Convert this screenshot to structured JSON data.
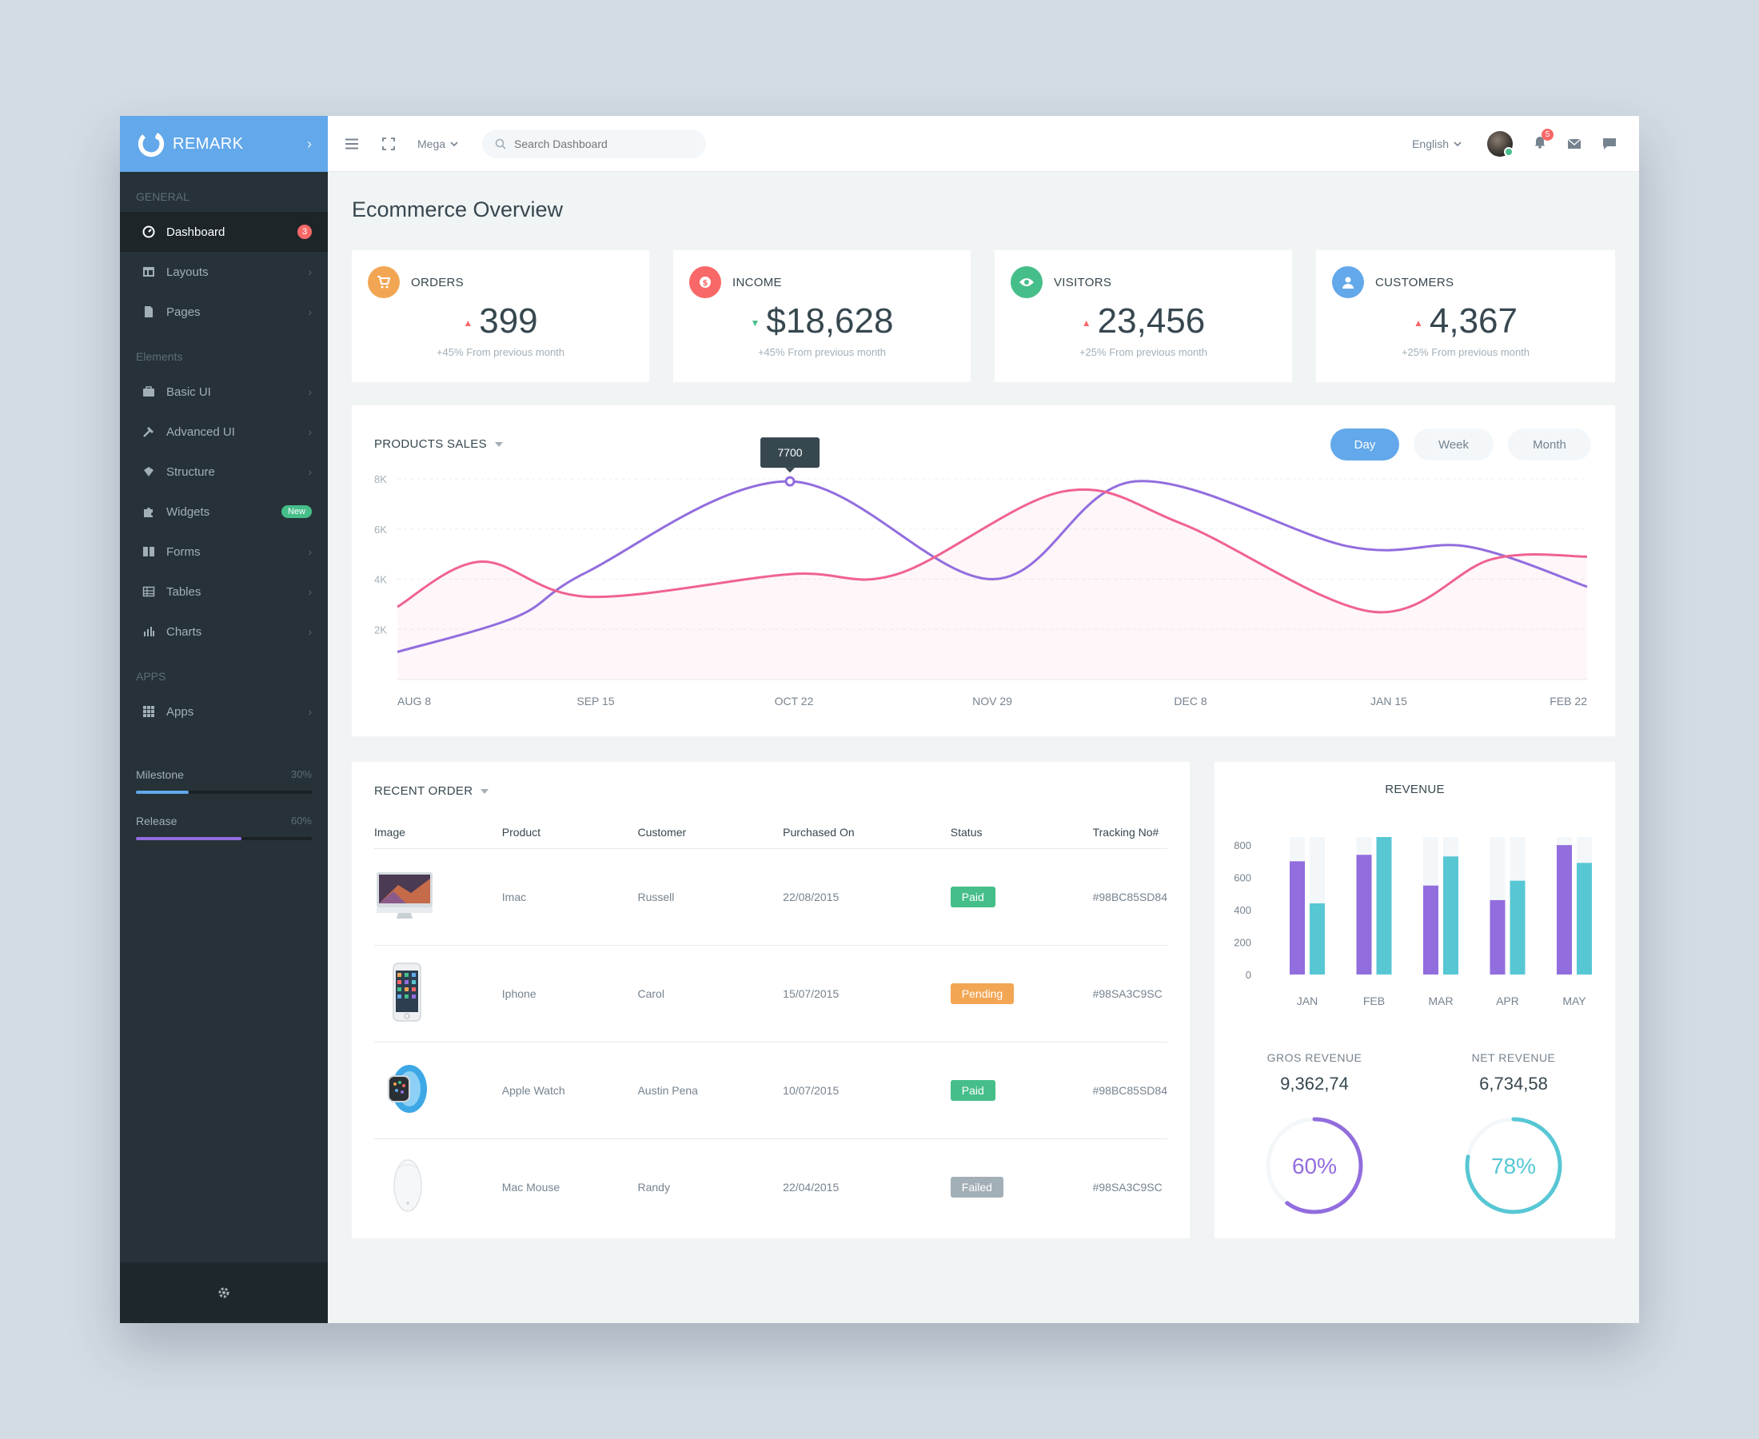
{
  "brand": {
    "name": "REMARK"
  },
  "sidebar": {
    "sections": {
      "general": "GENERAL",
      "elements": "Elements",
      "apps": "APPS"
    },
    "items": [
      {
        "label": "Dashboard",
        "badge": "3"
      },
      {
        "label": "Layouts"
      },
      {
        "label": "Pages"
      },
      {
        "label": "Basic UI"
      },
      {
        "label": "Advanced UI"
      },
      {
        "label": "Structure"
      },
      {
        "label": "Widgets",
        "badge": "New"
      },
      {
        "label": "Forms"
      },
      {
        "label": "Tables"
      },
      {
        "label": "Charts"
      },
      {
        "label": "Apps"
      }
    ],
    "progress": [
      {
        "label": "Milestone",
        "percent_text": "30%",
        "value": 30,
        "color": "#62a8ea"
      },
      {
        "label": "Release",
        "percent_text": "60%",
        "value": 60,
        "color": "#926dde"
      }
    ]
  },
  "header": {
    "mega": "Mega",
    "search_placeholder": "Search Dashboard",
    "language": "English",
    "notification_count": "5"
  },
  "page": {
    "title": "Ecommerce Overview"
  },
  "stats": [
    {
      "title": "ORDERS",
      "value": "399",
      "sub": "+45% From previous month",
      "color": "#f2a654",
      "trend": "up"
    },
    {
      "title": "INCOME",
      "value": "$18,628",
      "sub": "+45% From previous month",
      "color": "#f96868",
      "trend": "down"
    },
    {
      "title": "VISITORS",
      "value": "23,456",
      "sub": "+25% From previous month",
      "color": "#46be8a",
      "trend": "up"
    },
    {
      "title": "CUSTOMERS",
      "value": "4,367",
      "sub": "+25% From previous month",
      "color": "#62a8ea",
      "trend": "up"
    }
  ],
  "sales": {
    "title": "PRODUCTS SALES",
    "ranges": [
      "Day",
      "Week",
      "Month"
    ],
    "selected_range": "Day",
    "tooltip": "7700"
  },
  "chart_data": [
    {
      "type": "line",
      "title": "PRODUCTS SALES",
      "x": [
        "AUG 8",
        "SEP 15",
        "OCT 22",
        "NOV 29",
        "DEC 8",
        "JAN 15",
        "FEB 22"
      ],
      "y_ticks": [
        "2K",
        "4K",
        "6K",
        "8K"
      ],
      "ylim": [
        0,
        8000
      ],
      "series": [
        {
          "color": "#926dde",
          "points": [
            [
              0,
              1100
            ],
            [
              0.1,
              2500
            ],
            [
              0.16,
              4300
            ],
            [
              0.33,
              7900
            ],
            [
              0.5,
              4000
            ],
            [
              0.62,
              7900
            ],
            [
              0.8,
              5300
            ],
            [
              0.9,
              5300
            ],
            [
              1,
              3700
            ]
          ]
        },
        {
          "color": "#f06292",
          "points": [
            [
              0,
              2900
            ],
            [
              0.07,
              4700
            ],
            [
              0.16,
              3300
            ],
            [
              0.33,
              4200
            ],
            [
              0.42,
              4200
            ],
            [
              0.56,
              7500
            ],
            [
              0.66,
              6200
            ],
            [
              0.82,
              2700
            ],
            [
              0.92,
              4800
            ],
            [
              1,
              4900
            ]
          ]
        }
      ]
    },
    {
      "type": "bar",
      "title": "REVENUE",
      "categories": [
        "JAN",
        "FEB",
        "MAR",
        "APR",
        "MAY"
      ],
      "y_ticks": [
        "0",
        "200",
        "400",
        "600",
        "800"
      ],
      "ylim": [
        0,
        850
      ],
      "series": [
        {
          "color": "#926dde",
          "values": [
            700,
            740,
            550,
            460,
            800
          ]
        },
        {
          "color": "#57c7d4",
          "values": [
            440,
            850,
            730,
            580,
            690
          ]
        }
      ]
    }
  ],
  "orders": {
    "title": "RECENT ORDER",
    "columns": [
      "Image",
      "Product",
      "Customer",
      "Purchased On",
      "Status",
      "Tracking No#"
    ],
    "rows": [
      {
        "product": "Imac",
        "customer": "Russell",
        "date": "22/08/2015",
        "status": "Paid",
        "status_color": "#46be8a",
        "tracking": "#98BC85SD84",
        "icon": "imac-icon"
      },
      {
        "product": "Iphone",
        "customer": "Carol",
        "date": "15/07/2015",
        "status": "Pending",
        "status_color": "#f2a654",
        "tracking": "#98SA3C9SC",
        "icon": "iphone-icon"
      },
      {
        "product": "Apple Watch",
        "customer": "Austin Pena",
        "date": "10/07/2015",
        "status": "Paid",
        "status_color": "#46be8a",
        "tracking": "#98BC85SD84",
        "icon": "watch-icon"
      },
      {
        "product": "Mac Mouse",
        "customer": "Randy",
        "date": "22/04/2015",
        "status": "Failed",
        "status_color": "#a3afb7",
        "tracking": "#98SA3C9SC",
        "icon": "mouse-icon"
      }
    ]
  },
  "revenue": {
    "title": "REVENUE",
    "gross": {
      "label": "GROS REVENUE",
      "value": "9,362,74",
      "percent_text": "60%",
      "percent": 60,
      "color": "#926dde"
    },
    "net": {
      "label": "NET REVENUE",
      "value": "6,734,58",
      "percent_text": "78%",
      "percent": 78,
      "color": "#57c7d4"
    }
  }
}
